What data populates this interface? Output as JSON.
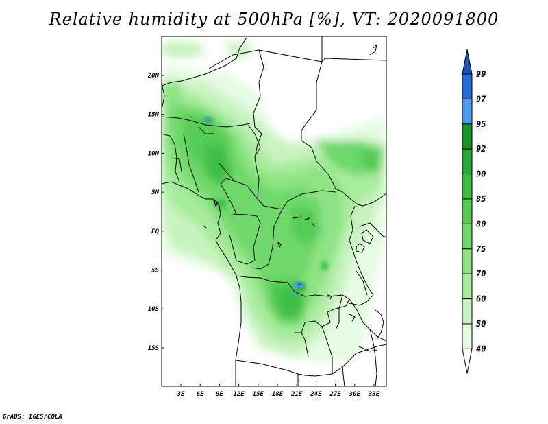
{
  "title": "Relative humidity at 500hPa [%], VT: 2020091800",
  "credit": "GrADS: IGES/COLA",
  "lat_labels": [
    "20N",
    "15N",
    "10N",
    "5N",
    "EQ",
    "5S",
    "10S",
    "15S"
  ],
  "lon_labels": [
    "3E",
    "6E",
    "9E",
    "12E",
    "15E",
    "18E",
    "21E",
    "24E",
    "27E",
    "30E",
    "33E"
  ],
  "colorbar": {
    "levels": [
      "40",
      "50",
      "60",
      "70",
      "75",
      "80",
      "85",
      "90",
      "92",
      "95",
      "97",
      "99"
    ],
    "colors": [
      "#ffffff",
      "#e6fbe3",
      "#c8f3c0",
      "#a8eb9d",
      "#8ee384",
      "#6fd86a",
      "#54cc54",
      "#3cbe45",
      "#2aa93a",
      "#199527",
      "#4a9cf0",
      "#2270d8",
      "#1656b8"
    ]
  },
  "map": {
    "region": "Central Africa",
    "lon_range": [
      0,
      35
    ],
    "lat_range": [
      -20,
      24.5
    ]
  }
}
